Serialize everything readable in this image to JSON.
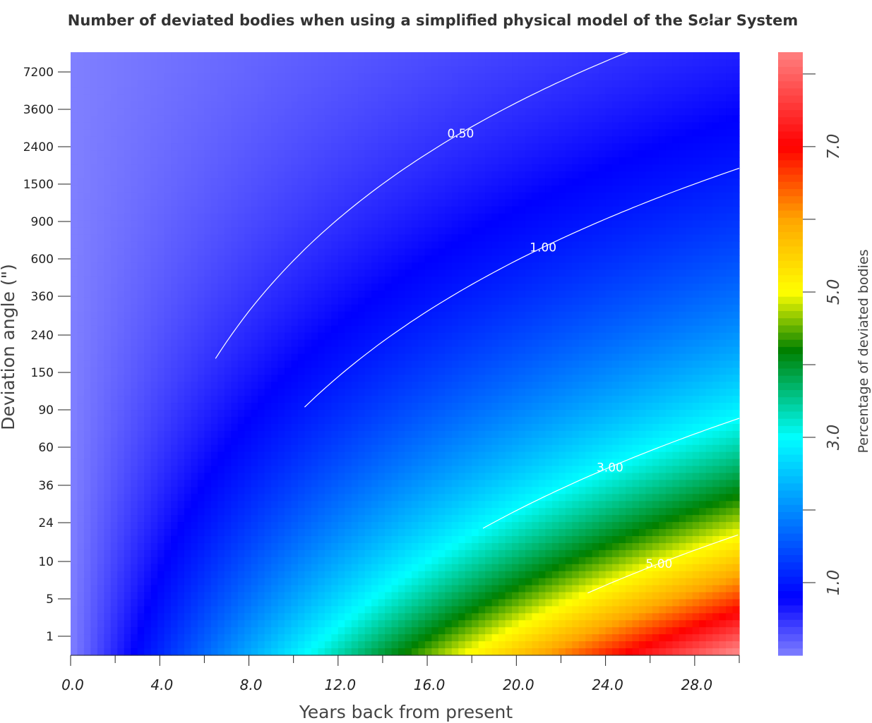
{
  "chart_data": {
    "type": "heatmap",
    "title": "Number of deviated bodies when using a simplified physical model of the Solar System",
    "xlabel": "Years back from present",
    "ylabel": "Deviation angle (\")",
    "colorbar_label": "Percentage of deviated bodies",
    "x_ticks": [
      "0.0",
      "4.0",
      "8.0",
      "12.0",
      "16.0",
      "20.0",
      "24.0",
      "28.0"
    ],
    "x_tick_values": [
      0,
      4,
      8,
      12,
      16,
      20,
      24,
      28
    ],
    "xlim": [
      0,
      30
    ],
    "y_ticks": [
      "7200",
      "3600",
      "2400",
      "1500",
      "900",
      "600",
      "360",
      "240",
      "150",
      "90",
      "60",
      "36",
      "24",
      "10",
      "5",
      "1"
    ],
    "colorbar_ticks": [
      "1.0",
      "3.0",
      "5.0",
      "7.0"
    ],
    "colorbar_tick_values": [
      1,
      3,
      5,
      7
    ],
    "colorbar_range": [
      0,
      8.3
    ],
    "colormap": [
      "#8080ff",
      "#0000ff",
      "#00ffff",
      "#008000",
      "#ffff00",
      "#ffa500",
      "#ff0000",
      "#ff8080"
    ],
    "colormap_stops": [
      0,
      0.8,
      3.0,
      4.2,
      5.0,
      6.0,
      7.0,
      8.3
    ],
    "contour_levels": [
      {
        "label": "0.50",
        "value": 0.5,
        "x_start": 6.5
      },
      {
        "label": "1.00",
        "value": 1.0,
        "x_start": 10.5
      },
      {
        "label": "3.00",
        "value": 3.0,
        "x_start": 18.5
      },
      {
        "label": "5.00",
        "value": 5.0,
        "x_start": 23.2
      }
    ]
  }
}
